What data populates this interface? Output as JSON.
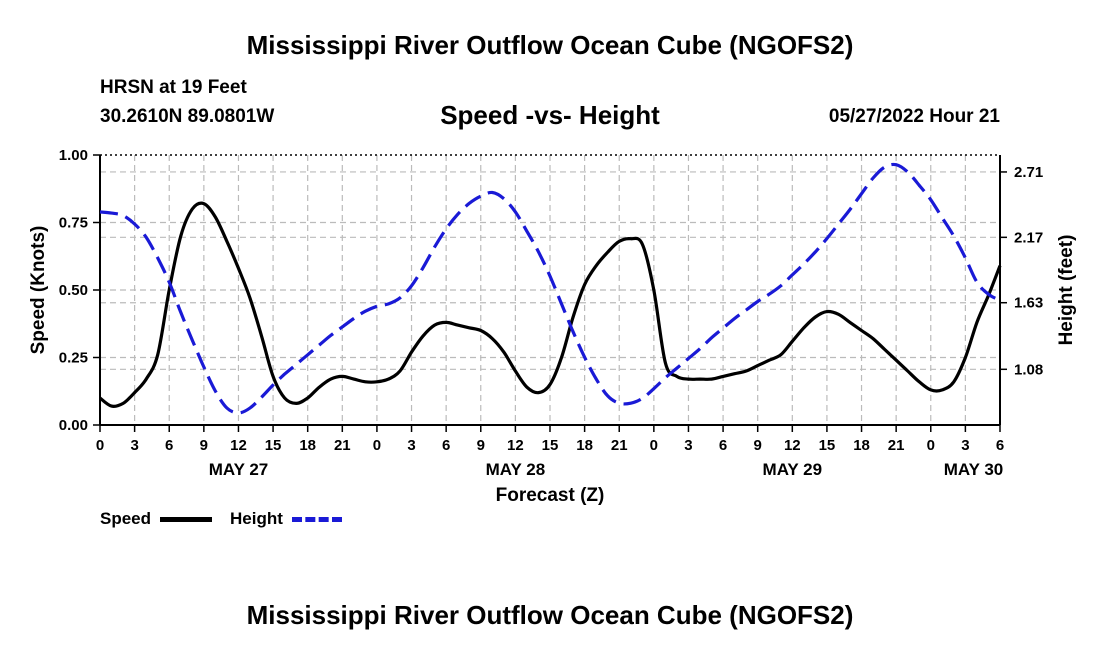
{
  "header": {
    "title": "Mississippi River Outflow Ocean Cube (NGOFS2)",
    "station": "HRSN at 19 Feet",
    "coords": "30.2610N  89.0801W",
    "subtitle": "Speed -vs- Height",
    "datetime": "05/27/2022 Hour 21"
  },
  "footer": {
    "title": "Mississippi River Outflow Ocean Cube (NGOFS2)"
  },
  "legend": {
    "speed_label": "Speed",
    "height_label": "Height"
  },
  "colors": {
    "speed": "#000000",
    "height": "#1a1ad6",
    "grid": "#bbbbbb"
  },
  "chart_data": {
    "type": "line",
    "title": "Speed -vs- Height",
    "xlabel": "Forecast (Z)",
    "ylabel": "Speed (Knots)",
    "y2label": "Height (feet)",
    "x_range_hours": [
      0,
      78
    ],
    "ylim": [
      0,
      1.0
    ],
    "y2lim": [
      0.62,
      2.85
    ],
    "yticks": [
      0.0,
      0.25,
      0.5,
      0.75,
      1.0
    ],
    "yticklabels": [
      "0.00",
      "0.25",
      "0.50",
      "0.75",
      "1.00"
    ],
    "y2ticks": [
      1.08,
      1.63,
      2.17,
      2.71
    ],
    "y2ticklabels": [
      "1.08",
      "1.63",
      "2.17",
      "2.71"
    ],
    "xticks": [
      0,
      3,
      6,
      9,
      12,
      15,
      18,
      21,
      24,
      27,
      30,
      33,
      36,
      39,
      42,
      45,
      48,
      51,
      54,
      57,
      60,
      63,
      66,
      69,
      72,
      75,
      78
    ],
    "xticklabels": [
      "0",
      "3",
      "6",
      "9",
      "12",
      "15",
      "18",
      "21",
      "0",
      "3",
      "6",
      "9",
      "12",
      "15",
      "18",
      "21",
      "0",
      "3",
      "6",
      "9",
      "12",
      "15",
      "18",
      "21",
      "0",
      "3",
      "6"
    ],
    "date_labels": [
      {
        "hour": 12,
        "label": "MAY 27"
      },
      {
        "hour": 36,
        "label": "MAY 28"
      },
      {
        "hour": 60,
        "label": "MAY 29"
      },
      {
        "hour": 75.7,
        "label": "MAY 30"
      }
    ],
    "series": [
      {
        "name": "Speed",
        "axis": "left",
        "style": "solid",
        "x": [
          0,
          1,
          2,
          3,
          4,
          5,
          6,
          7,
          8,
          9,
          10,
          11,
          12,
          13,
          14,
          15,
          16,
          17,
          18,
          19,
          20,
          21,
          22,
          23,
          24,
          25,
          26,
          27,
          28,
          29,
          30,
          31,
          32,
          33,
          34,
          35,
          36,
          37,
          38,
          39,
          40,
          41,
          42,
          43,
          44,
          45,
          46,
          47,
          48,
          49,
          50,
          51,
          52,
          53,
          54,
          55,
          56,
          57,
          58,
          59,
          60,
          61,
          62,
          63,
          64,
          65,
          66,
          67,
          68,
          69,
          70,
          71,
          72,
          73,
          74,
          75,
          76,
          77,
          78
        ],
        "values": [
          0.1,
          0.07,
          0.08,
          0.12,
          0.17,
          0.26,
          0.5,
          0.7,
          0.8,
          0.82,
          0.77,
          0.68,
          0.58,
          0.47,
          0.33,
          0.18,
          0.1,
          0.08,
          0.1,
          0.14,
          0.17,
          0.18,
          0.17,
          0.16,
          0.16,
          0.17,
          0.2,
          0.27,
          0.33,
          0.37,
          0.38,
          0.37,
          0.36,
          0.35,
          0.32,
          0.27,
          0.2,
          0.14,
          0.12,
          0.15,
          0.25,
          0.4,
          0.52,
          0.59,
          0.64,
          0.68,
          0.69,
          0.67,
          0.5,
          0.23,
          0.18,
          0.17,
          0.17,
          0.17,
          0.18,
          0.19,
          0.2,
          0.22,
          0.24,
          0.26,
          0.31,
          0.36,
          0.4,
          0.42,
          0.41,
          0.38,
          0.35,
          0.32,
          0.28,
          0.24,
          0.2,
          0.16,
          0.13,
          0.13,
          0.16,
          0.25,
          0.38,
          0.48,
          0.59
        ]
      },
      {
        "name": "Height",
        "axis": "right",
        "style": "dashed",
        "x": [
          0,
          1,
          2,
          3,
          4,
          5,
          6,
          7,
          8,
          9,
          10,
          11,
          12,
          13,
          14,
          15,
          16,
          17,
          18,
          19,
          20,
          21,
          22,
          23,
          24,
          25,
          26,
          27,
          28,
          29,
          30,
          31,
          32,
          33,
          34,
          35,
          36,
          37,
          38,
          39,
          40,
          41,
          42,
          43,
          44,
          45,
          46,
          47,
          48,
          49,
          50,
          51,
          52,
          53,
          54,
          55,
          56,
          57,
          58,
          59,
          60,
          61,
          62,
          63,
          64,
          65,
          66,
          67,
          68,
          69,
          70,
          71,
          72,
          73,
          74,
          75,
          76,
          77,
          78
        ],
        "values": [
          2.38,
          2.37,
          2.35,
          2.28,
          2.17,
          2.0,
          1.8,
          1.55,
          1.32,
          1.1,
          0.9,
          0.76,
          0.72,
          0.76,
          0.85,
          0.95,
          1.04,
          1.12,
          1.2,
          1.28,
          1.36,
          1.43,
          1.5,
          1.56,
          1.6,
          1.62,
          1.67,
          1.77,
          1.92,
          2.09,
          2.24,
          2.36,
          2.45,
          2.51,
          2.54,
          2.49,
          2.38,
          2.22,
          2.05,
          1.85,
          1.62,
          1.39,
          1.18,
          1.0,
          0.86,
          0.8,
          0.8,
          0.84,
          0.92,
          1.01,
          1.09,
          1.17,
          1.25,
          1.34,
          1.42,
          1.5,
          1.57,
          1.64,
          1.7,
          1.77,
          1.86,
          1.95,
          2.05,
          2.16,
          2.28,
          2.4,
          2.53,
          2.66,
          2.75,
          2.77,
          2.71,
          2.6,
          2.48,
          2.33,
          2.18,
          2.0,
          1.8,
          1.7,
          1.65
        ]
      }
    ]
  }
}
